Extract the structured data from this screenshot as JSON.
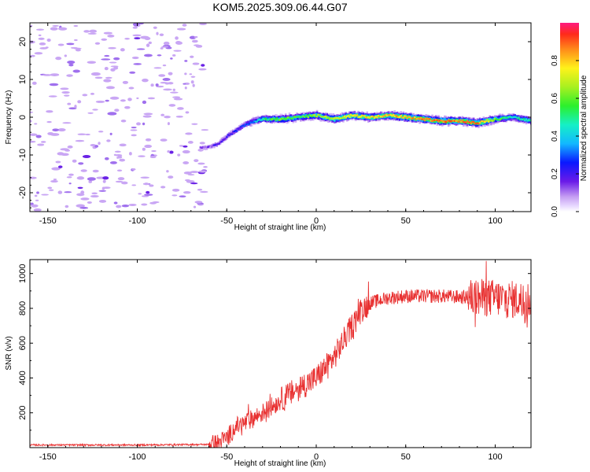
{
  "title": "KOM5.2025.309.06.44.G07",
  "chart_data": [
    {
      "type": "heatmap",
      "xlabel": "Height of straight line (km)",
      "ylabel": "Frequency (Hz)",
      "xlim": [
        -160,
        120
      ],
      "ylim": [
        -25,
        25
      ],
      "xticks": [
        -150,
        -100,
        -50,
        0,
        50,
        100
      ],
      "yticks": [
        -20,
        -10,
        0,
        10,
        20
      ],
      "noise_region_x": [
        -160,
        -60
      ],
      "ridge": {
        "x": [
          -65,
          -60,
          -55,
          -50,
          -45,
          -40,
          -35,
          -30,
          -20,
          -10,
          0,
          10,
          20,
          30,
          40,
          50,
          60,
          70,
          80,
          90,
          100,
          110,
          120
        ],
        "freq": [
          -8,
          -8,
          -7,
          -5,
          -3.5,
          -2,
          -1,
          -0.5,
          -0.5,
          0,
          0.5,
          -0.5,
          0.5,
          0,
          0.5,
          0,
          -0.5,
          -1,
          -1,
          -1.5,
          -0.5,
          0,
          -1
        ],
        "amplitude": [
          0.12,
          0.14,
          0.18,
          0.2,
          0.22,
          0.25,
          0.35,
          0.5,
          0.6,
          0.55,
          0.65,
          0.7,
          0.75,
          0.78,
          0.8,
          0.82,
          0.85,
          0.88,
          0.85,
          0.88,
          0.6,
          0.45,
          0.5
        ]
      }
    },
    {
      "type": "colorbar",
      "label": "Normalized spectral amplitude",
      "range": [
        0,
        1
      ],
      "ticks": [
        "0.0",
        "0.2",
        "0.4",
        "0.6",
        "0.8"
      ],
      "tick_values": [
        0,
        0.2,
        0.4,
        0.6,
        0.8
      ]
    },
    {
      "type": "line",
      "xlabel": "Height of straight line (km)",
      "ylabel": "SNR (v/v)",
      "xlim": [
        -160,
        120
      ],
      "ylim": [
        0,
        1080
      ],
      "xticks": [
        -150,
        -100,
        -50,
        0,
        50,
        100
      ],
      "yticks": [
        200,
        400,
        600,
        800,
        1000
      ],
      "color": "#e83030",
      "series": [
        {
          "name": "SNR",
          "x": [
            -160,
            -100,
            -60,
            -55,
            -50,
            -45,
            -40,
            -35,
            -30,
            -20,
            -10,
            0,
            10,
            15,
            20,
            25,
            30,
            40,
            50,
            60,
            70,
            80,
            90,
            100,
            110,
            120
          ],
          "y": [
            15,
            15,
            18,
            25,
            55,
            120,
            140,
            170,
            200,
            270,
            340,
            400,
            520,
            610,
            700,
            790,
            830,
            860,
            870,
            870,
            870,
            865,
            860,
            860,
            850,
            850
          ]
        }
      ]
    }
  ]
}
